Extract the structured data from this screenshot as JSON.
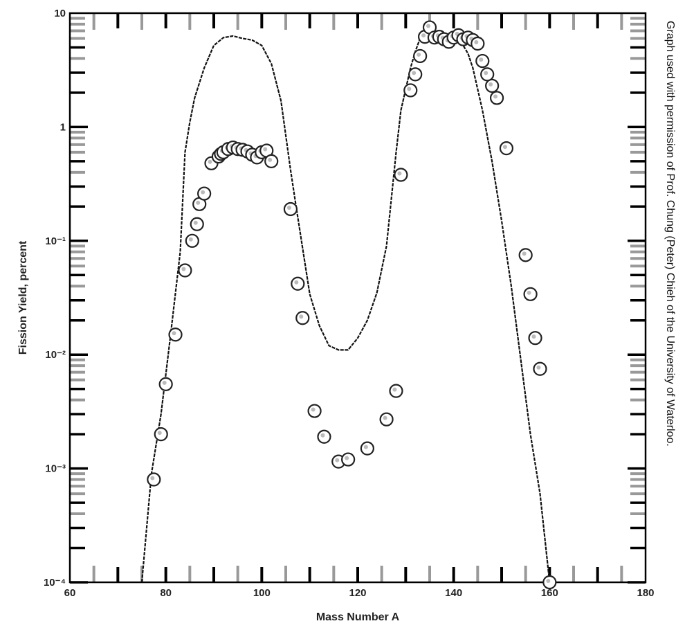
{
  "chart_data": {
    "type": "scatter",
    "title": "",
    "xlabel": "Mass Number A",
    "ylabel": "Fission Yield, percent",
    "xlim": [
      60,
      180
    ],
    "ylim": [
      0.0001,
      10
    ],
    "y_scale": "log",
    "x_ticks": [
      60,
      80,
      100,
      120,
      140,
      160,
      180
    ],
    "x_tick_labels": [
      "60",
      "80",
      "100",
      "120",
      "140",
      "160",
      "180"
    ],
    "y_ticks": [
      10,
      1,
      0.1,
      0.01,
      0.001,
      0.0001
    ],
    "y_tick_labels": [
      "10",
      "1",
      "10⁻¹",
      "10⁻²",
      "10⁻³",
      "10⁻⁴"
    ],
    "grid": false,
    "legend": "none",
    "colors": {
      "line": "#111111",
      "marker_fill": "#ffffff",
      "marker_edge": "#222222",
      "tick_black": "#000000",
      "tick_gray": "#999999"
    },
    "curve": {
      "x": [
        75,
        77,
        79,
        81,
        83,
        84,
        85,
        86,
        88,
        90,
        92,
        94,
        96,
        98,
        100,
        102,
        104,
        106,
        107,
        110,
        112,
        114,
        116,
        118,
        120,
        122,
        124,
        126,
        128,
        129,
        131,
        132,
        133,
        134,
        136,
        138,
        140,
        142,
        143,
        144,
        146,
        148,
        150,
        152,
        154,
        156,
        158,
        160
      ],
      "y": [
        0.0001,
        0.0009,
        0.003,
        0.015,
        0.08,
        0.6,
        1.1,
        1.8,
        3.3,
        5.2,
        6.1,
        6.3,
        6.0,
        5.8,
        5.2,
        3.6,
        1.7,
        0.42,
        0.22,
        0.034,
        0.018,
        0.012,
        0.011,
        0.011,
        0.014,
        0.02,
        0.035,
        0.09,
        0.6,
        1.4,
        3.3,
        4.6,
        6.0,
        6.4,
        6.2,
        6.0,
        5.9,
        5.2,
        4.4,
        3.3,
        1.4,
        0.5,
        0.15,
        0.04,
        0.009,
        0.002,
        0.0006,
        0.0001
      ]
    },
    "points": {
      "x": [
        77.5,
        79,
        80,
        82,
        84,
        85.5,
        86.5,
        87,
        88,
        89.5,
        91,
        91.5,
        92,
        93,
        94,
        95,
        96,
        97,
        98,
        99,
        100,
        101,
        102,
        106,
        107.5,
        108.5,
        111,
        113,
        116,
        118,
        122,
        126,
        128,
        129,
        131,
        132,
        133,
        134,
        135,
        136,
        137,
        138,
        139,
        140,
        141,
        142,
        143,
        144,
        145,
        146,
        147,
        148,
        149,
        151,
        155,
        156,
        157,
        158,
        160
      ],
      "y": [
        0.0008,
        0.002,
        0.0055,
        0.015,
        0.055,
        0.1,
        0.14,
        0.21,
        0.26,
        0.48,
        0.55,
        0.58,
        0.6,
        0.64,
        0.66,
        0.64,
        0.63,
        0.61,
        0.57,
        0.54,
        0.6,
        0.62,
        0.5,
        0.19,
        0.042,
        0.021,
        0.0032,
        0.0019,
        0.00115,
        0.0012,
        0.0015,
        0.0027,
        0.0048,
        0.38,
        2.1,
        2.9,
        4.2,
        6.2,
        7.5,
        6.1,
        6.2,
        5.9,
        5.6,
        6.1,
        6.4,
        5.9,
        6.1,
        5.8,
        5.4,
        3.8,
        2.9,
        2.3,
        1.8,
        0.65,
        0.075,
        0.034,
        0.014,
        0.0075,
        0.0001
      ]
    }
  },
  "credit": "Graph used with permission of Prof. Chung (Peter) Chieh of the University of Waterloo."
}
